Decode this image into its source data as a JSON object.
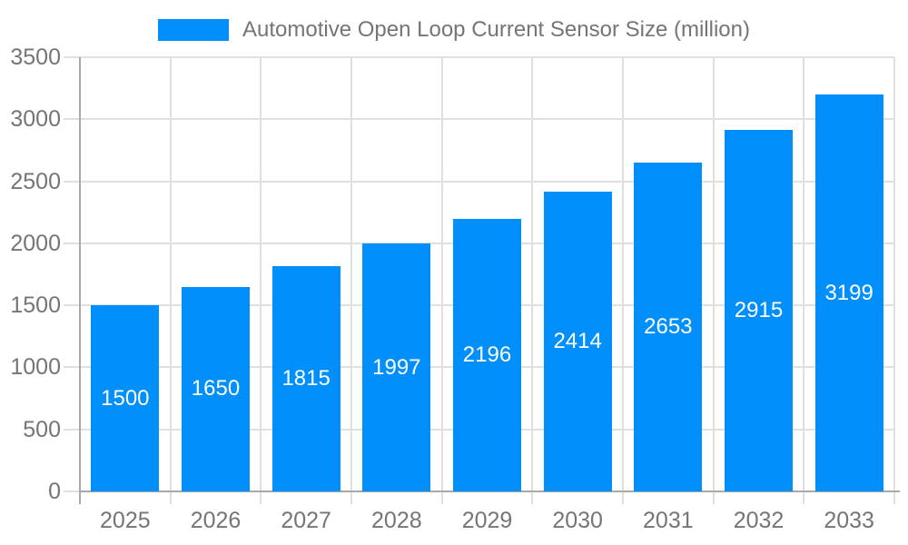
{
  "chart_data": {
    "type": "bar",
    "series_name": "Automotive Open Loop Current Sensor Size (million)",
    "categories": [
      "2025",
      "2026",
      "2027",
      "2028",
      "2029",
      "2030",
      "2031",
      "2032",
      "2033"
    ],
    "values": [
      1500,
      1650,
      1815,
      1997,
      2196,
      2414,
      2653,
      2915,
      3199
    ],
    "ylim": [
      0,
      3500
    ],
    "ytick_step": 500,
    "grid": true,
    "legend_position": "top",
    "value_labels": "inside-center"
  },
  "colors": {
    "bar": "#008ffb",
    "axis_line": "#a8a8a8",
    "gridline": "#e0e0e0",
    "tick_text": "#757575",
    "value_label": "#ffffff"
  }
}
